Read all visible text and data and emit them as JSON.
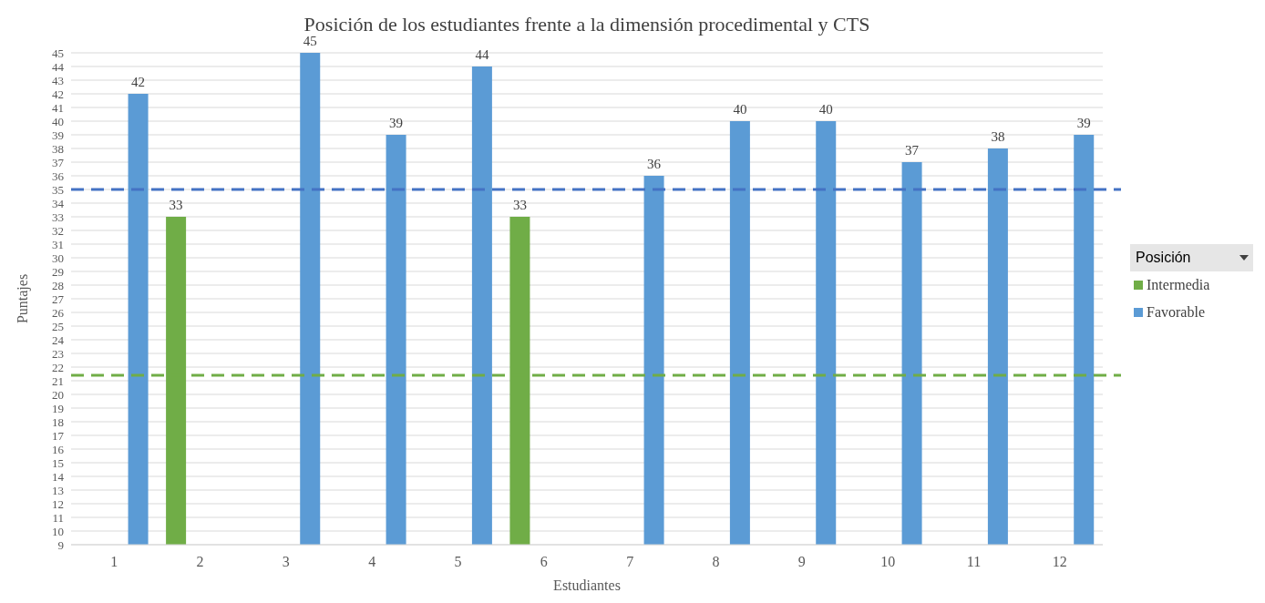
{
  "chart_data": {
    "type": "bar",
    "title": "Posición de los estudiantes frente a la dimensión procedimental y CTS",
    "xlabel": "Estudiantes",
    "ylabel": "Puntajes",
    "legend_title": "Posición",
    "categories": [
      "1",
      "2",
      "3",
      "4",
      "5",
      "6",
      "7",
      "8",
      "9",
      "10",
      "11",
      "12"
    ],
    "series": [
      {
        "name": "Intermedia",
        "color": "#70ad47",
        "values": [
          null,
          33,
          null,
          null,
          null,
          33,
          null,
          null,
          null,
          null,
          null,
          null
        ]
      },
      {
        "name": "Favorable",
        "color": "#5b9bd5",
        "values": [
          42,
          null,
          45,
          39,
          44,
          null,
          36,
          40,
          40,
          37,
          38,
          39
        ]
      }
    ],
    "ylim": [
      9,
      45
    ],
    "yticks": [
      9,
      10,
      11,
      12,
      13,
      14,
      15,
      16,
      17,
      18,
      19,
      20,
      21,
      22,
      23,
      24,
      25,
      26,
      27,
      28,
      29,
      30,
      31,
      32,
      33,
      34,
      35,
      36,
      37,
      38,
      39,
      40,
      41,
      42,
      43,
      44,
      45
    ],
    "grid": "y",
    "data_labels": true,
    "legend": "right",
    "ref_lines": [
      {
        "axis": "y",
        "value": 35,
        "color": "#4472c4",
        "line_style": "dashed"
      },
      {
        "axis": "y",
        "value": 21.4,
        "color": "#70ad47",
        "line_style": "dashed"
      }
    ]
  }
}
